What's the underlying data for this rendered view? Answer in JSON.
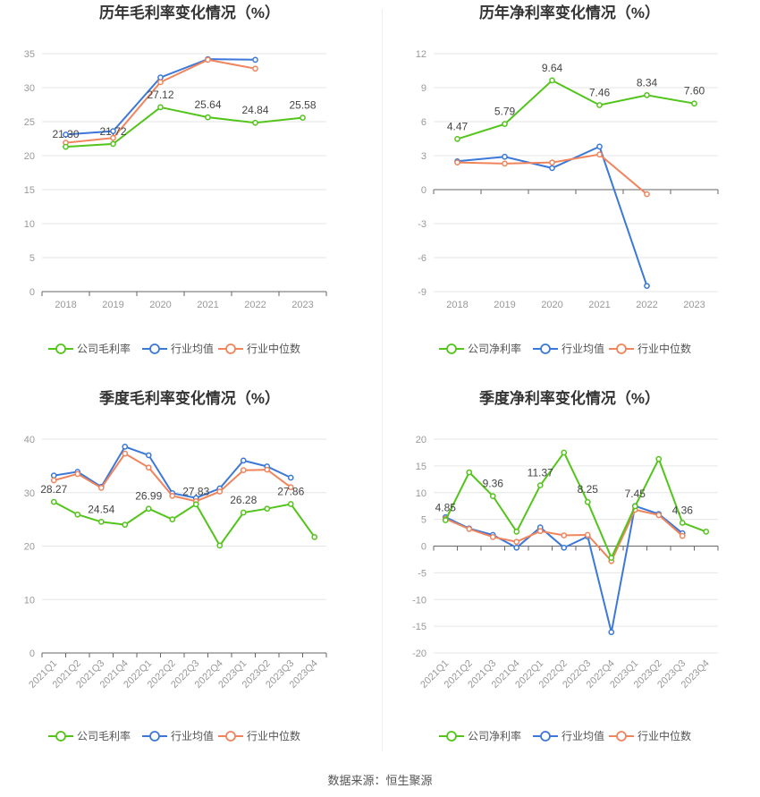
{
  "source": "数据来源：恒生聚源",
  "colors": {
    "company": "#52c41a",
    "avg": "#3c78d8",
    "median": "#f0845c",
    "grid": "#e6e6e6",
    "axis": "#666666"
  },
  "chart_data": [
    {
      "type": "line",
      "title": "历年毛利率变化情况（%）",
      "categories": [
        "2018",
        "2019",
        "2020",
        "2021",
        "2022",
        "2023"
      ],
      "ylim": [
        0,
        35
      ],
      "yticks": [
        0,
        5,
        10,
        15,
        20,
        25,
        30,
        35
      ],
      "rotate_x": false,
      "series": [
        {
          "name": "公司毛利率",
          "key": "company",
          "values": [
            21.3,
            21.72,
            27.12,
            25.64,
            24.84,
            25.58
          ],
          "labels": [
            "21.30",
            "21.72",
            "27.12",
            "25.64",
            "24.84",
            "25.58"
          ]
        },
        {
          "name": "行业均值",
          "key": "avg",
          "values": [
            23.1,
            23.6,
            31.5,
            34.2,
            34.1,
            null
          ]
        },
        {
          "name": "行业中位数",
          "key": "median",
          "values": [
            21.9,
            22.6,
            30.8,
            34.1,
            32.8,
            null
          ]
        }
      ]
    },
    {
      "type": "line",
      "title": "历年净利率变化情况（%）",
      "categories": [
        "2018",
        "2019",
        "2020",
        "2021",
        "2022",
        "2023"
      ],
      "ylim": [
        -9,
        12
      ],
      "yticks": [
        -9,
        -6,
        -3,
        0,
        3,
        6,
        9,
        12
      ],
      "rotate_x": false,
      "series": [
        {
          "name": "公司净利率",
          "key": "company",
          "values": [
            4.47,
            5.79,
            9.64,
            7.46,
            8.34,
            7.6
          ],
          "labels": [
            "4.47",
            "5.79",
            "9.64",
            "7.46",
            "8.34",
            "7.60"
          ]
        },
        {
          "name": "行业均值",
          "key": "avg",
          "values": [
            2.5,
            2.9,
            1.9,
            3.8,
            -8.5,
            null
          ]
        },
        {
          "name": "行业中位数",
          "key": "median",
          "values": [
            2.4,
            2.3,
            2.4,
            3.1,
            -0.4,
            null
          ]
        }
      ]
    },
    {
      "type": "line",
      "title": "季度毛利率变化情况（%）",
      "categories": [
        "2021Q1",
        "2021Q2",
        "2021Q3",
        "2021Q4",
        "2022Q1",
        "2022Q2",
        "2022Q3",
        "2022Q4",
        "2023Q1",
        "2023Q2",
        "2023Q3",
        "2023Q4"
      ],
      "ylim": [
        0,
        40
      ],
      "yticks": [
        0,
        10,
        20,
        30,
        40
      ],
      "rotate_x": true,
      "series": [
        {
          "name": "公司毛利率",
          "key": "company",
          "values": [
            28.27,
            25.9,
            24.54,
            24.0,
            26.99,
            25.0,
            27.83,
            20.1,
            26.28,
            27.0,
            27.86,
            21.7
          ],
          "labels": [
            "28.27",
            "",
            "24.54",
            "",
            "26.99",
            "",
            "27.83",
            "",
            "26.28",
            "",
            "27.86",
            ""
          ]
        },
        {
          "name": "行业均值",
          "key": "avg",
          "values": [
            33.2,
            33.9,
            31.1,
            38.6,
            37.0,
            29.9,
            29.0,
            30.8,
            36.0,
            34.9,
            32.8,
            null
          ]
        },
        {
          "name": "行业中位数",
          "key": "median",
          "values": [
            32.3,
            33.5,
            30.9,
            37.3,
            34.7,
            29.4,
            28.4,
            30.2,
            34.2,
            34.3,
            31.0,
            null
          ]
        }
      ]
    },
    {
      "type": "line",
      "title": "季度净利率变化情况（%）",
      "categories": [
        "2021Q1",
        "2021Q2",
        "2021Q3",
        "2021Q4",
        "2022Q1",
        "2022Q2",
        "2022Q3",
        "2022Q4",
        "2023Q1",
        "2023Q2",
        "2023Q3",
        "2023Q4"
      ],
      "ylim": [
        -20,
        20
      ],
      "yticks": [
        -20,
        -15,
        -10,
        -5,
        0,
        5,
        10,
        15,
        20
      ],
      "rotate_x": true,
      "series": [
        {
          "name": "公司净利率",
          "key": "company",
          "values": [
            4.85,
            13.8,
            9.36,
            2.7,
            11.37,
            17.5,
            8.25,
            -2.2,
            7.45,
            16.3,
            4.36,
            2.7
          ],
          "labels": [
            "4.85",
            "",
            "9.36",
            "",
            "11.37",
            "",
            "8.25",
            "",
            "7.45",
            "",
            "4.36",
            ""
          ]
        },
        {
          "name": "行业均值",
          "key": "avg",
          "values": [
            5.4,
            3.3,
            2.1,
            -0.3,
            3.5,
            -0.3,
            1.8,
            -16.1,
            7.5,
            6.0,
            2.4,
            null
          ]
        },
        {
          "name": "行业中位数",
          "key": "median",
          "values": [
            5.1,
            3.2,
            1.7,
            0.8,
            2.8,
            2.0,
            2.1,
            -2.8,
            6.8,
            5.8,
            1.9,
            null
          ]
        }
      ]
    }
  ]
}
